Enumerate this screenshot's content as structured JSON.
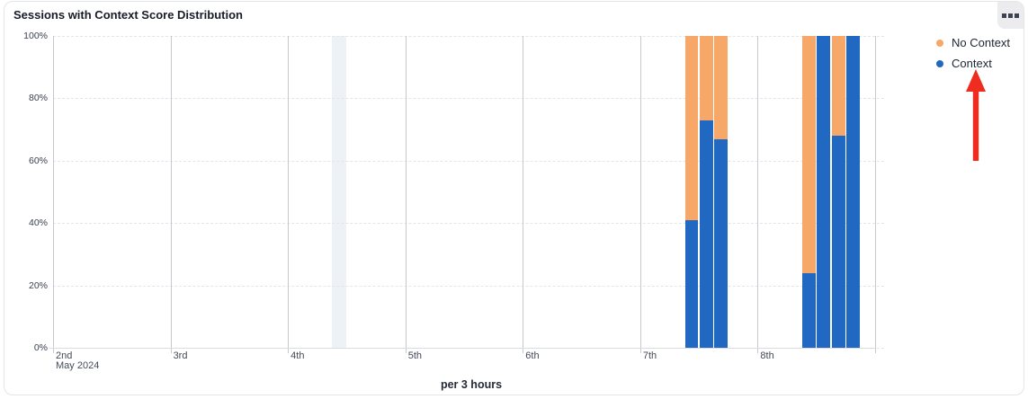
{
  "widget": {
    "title": "Sessions with Context Score Distribution",
    "menu_button": {
      "icon": "three-squares-icon"
    }
  },
  "chart_data": {
    "type": "bar",
    "stacked": true,
    "unit": "%",
    "title": "Sessions with Context Score Distribution",
    "granularity_label": "per 3 hours",
    "ylim": [
      0,
      100
    ],
    "y_ticks": [
      0,
      20,
      40,
      60,
      80,
      100
    ],
    "x_days": [
      "2nd",
      "3rd",
      "4th",
      "5th",
      "6th",
      "7th",
      "8th"
    ],
    "x_month_label": "May 2024",
    "slots_per_day": 8,
    "grid": "horizontal-dashed, vertical-day-lines",
    "legend_position": "right",
    "legend": [
      {
        "label": "No Context",
        "color": "#f7a767"
      },
      {
        "label": "Context",
        "color": "#2168c2"
      }
    ],
    "bars": [
      {
        "day": "7th",
        "slot": 3,
        "context_pct": 41,
        "no_context_pct": 59
      },
      {
        "day": "7th",
        "slot": 4,
        "context_pct": 73,
        "no_context_pct": 27
      },
      {
        "day": "7th",
        "slot": 5,
        "context_pct": 67,
        "no_context_pct": 33
      },
      {
        "day": "8th",
        "slot": 3,
        "context_pct": 24,
        "no_context_pct": 76
      },
      {
        "day": "8th",
        "slot": 4,
        "context_pct": 100,
        "no_context_pct": 0
      },
      {
        "day": "8th",
        "slot": 5,
        "context_pct": 68,
        "no_context_pct": 32
      },
      {
        "day": "8th",
        "slot": 6,
        "context_pct": 100,
        "no_context_pct": 0
      }
    ],
    "highlight_band": {
      "day": "4th",
      "slot": 3
    }
  },
  "annotation": {
    "arrow": {
      "direction": "up",
      "color": "#ee2c1f",
      "points_to": "Context"
    }
  }
}
